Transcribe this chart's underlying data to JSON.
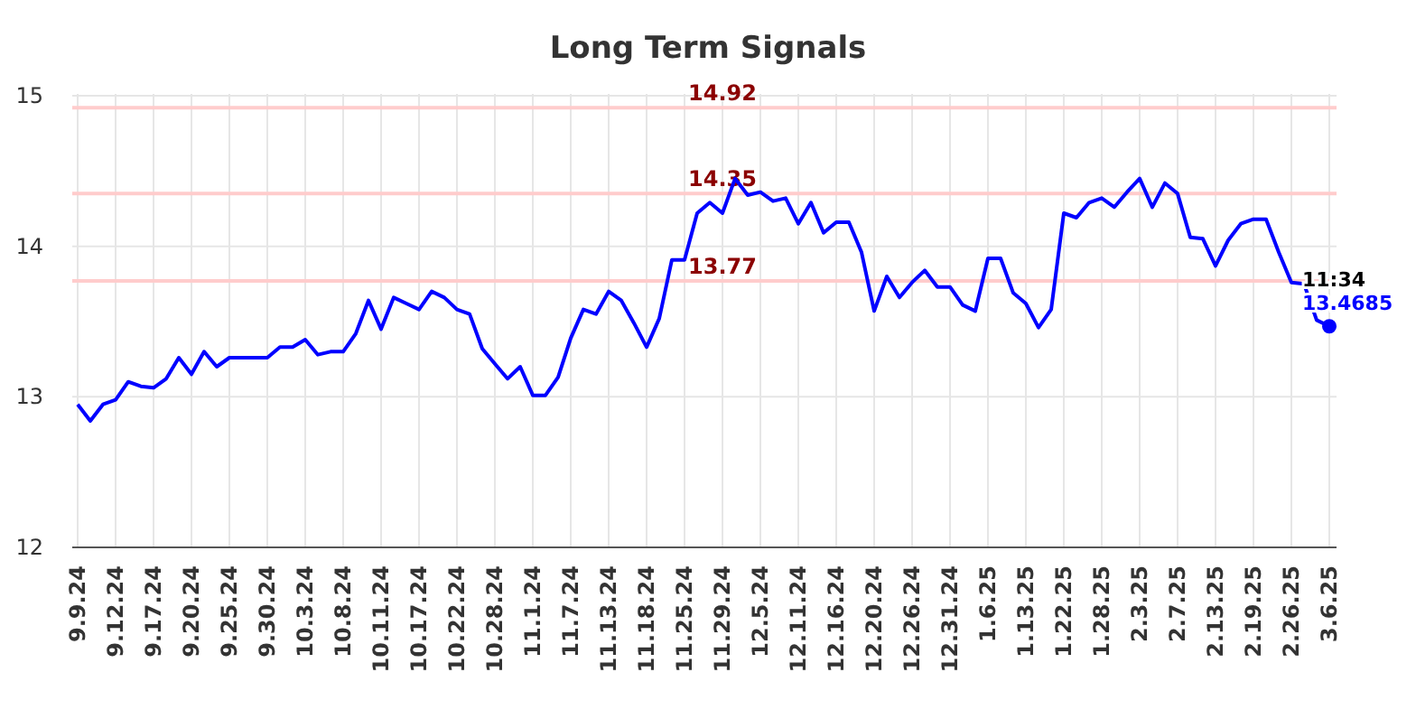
{
  "chart_data": {
    "type": "line",
    "title": "Long Term Signals",
    "categories": [
      "9.9.24",
      null,
      null,
      "9.12.24",
      null,
      null,
      "9.17.24",
      null,
      null,
      "9.20.24",
      null,
      null,
      "9.25.24",
      null,
      null,
      "9.30.24",
      null,
      null,
      "10.3.24",
      null,
      null,
      "10.8.24",
      null,
      null,
      "10.11.24",
      null,
      null,
      "10.17.24",
      null,
      null,
      "10.22.24",
      null,
      null,
      "10.28.24",
      null,
      null,
      "11.1.24",
      null,
      null,
      "11.7.24",
      null,
      null,
      "11.13.24",
      null,
      null,
      "11.18.24",
      null,
      null,
      "11.25.24",
      null,
      null,
      "11.29.24",
      null,
      null,
      "12.5.24",
      null,
      null,
      "12.11.24",
      null,
      null,
      "12.16.24",
      null,
      null,
      "12.20.24",
      null,
      null,
      "12.26.24",
      null,
      null,
      "12.31.24",
      null,
      null,
      "1.6.25",
      null,
      null,
      "1.13.25",
      null,
      null,
      "1.22.25",
      null,
      null,
      "1.28.25",
      null,
      null,
      "2.3.25",
      null,
      null,
      "2.7.25",
      null,
      null,
      "2.13.25",
      null,
      null,
      "2.19.25",
      null,
      null,
      "2.26.25",
      null,
      null,
      "3.6.25"
    ],
    "series": [
      {
        "color": "#0000ff",
        "values": [
          12.95,
          12.84,
          12.95,
          12.98,
          13.1,
          13.07,
          13.06,
          13.12,
          13.26,
          13.15,
          13.3,
          13.2,
          13.26,
          13.26,
          13.26,
          13.26,
          13.33,
          13.33,
          13.38,
          13.28,
          13.3,
          13.3,
          13.42,
          13.64,
          13.45,
          13.66,
          13.62,
          13.58,
          13.7,
          13.66,
          13.58,
          13.55,
          13.32,
          13.22,
          13.12,
          13.2,
          13.01,
          13.01,
          13.13,
          13.39,
          13.58,
          13.55,
          13.7,
          13.64,
          13.49,
          13.33,
          13.52,
          13.91,
          13.91,
          14.22,
          14.29,
          14.22,
          14.45,
          14.34,
          14.36,
          14.3,
          14.32,
          14.15,
          14.29,
          14.09,
          14.16,
          14.16,
          13.96,
          13.57,
          13.8,
          13.66,
          13.76,
          13.84,
          13.73,
          13.73,
          13.61,
          13.57,
          13.92,
          13.92,
          13.69,
          13.62,
          13.46,
          13.58,
          14.22,
          14.19,
          14.29,
          14.32,
          14.26,
          14.36,
          14.45,
          14.26,
          14.42,
          14.35,
          14.06,
          14.05,
          13.87,
          14.04,
          14.15,
          14.18,
          14.18,
          13.96,
          13.76,
          13.75,
          13.51,
          13.4685
        ]
      }
    ],
    "ylim": [
      12,
      15
    ],
    "yticks": [
      12,
      13,
      14,
      15
    ],
    "grid": true,
    "ref_lines": [
      {
        "axis": "y",
        "value": 14.92,
        "label": "14.92",
        "color": "#ffcccc"
      },
      {
        "axis": "y",
        "value": 14.35,
        "label": "14.35",
        "color": "#ffcccc"
      },
      {
        "axis": "y",
        "value": 13.77,
        "label": "13.77",
        "color": "#ffcccc"
      }
    ],
    "annotations": [
      {
        "text": "11:34",
        "x": "3.6.25",
        "y": 13.4685
      },
      {
        "text": "13.4685",
        "x": "3.6.25",
        "y": 13.4685
      }
    ]
  }
}
